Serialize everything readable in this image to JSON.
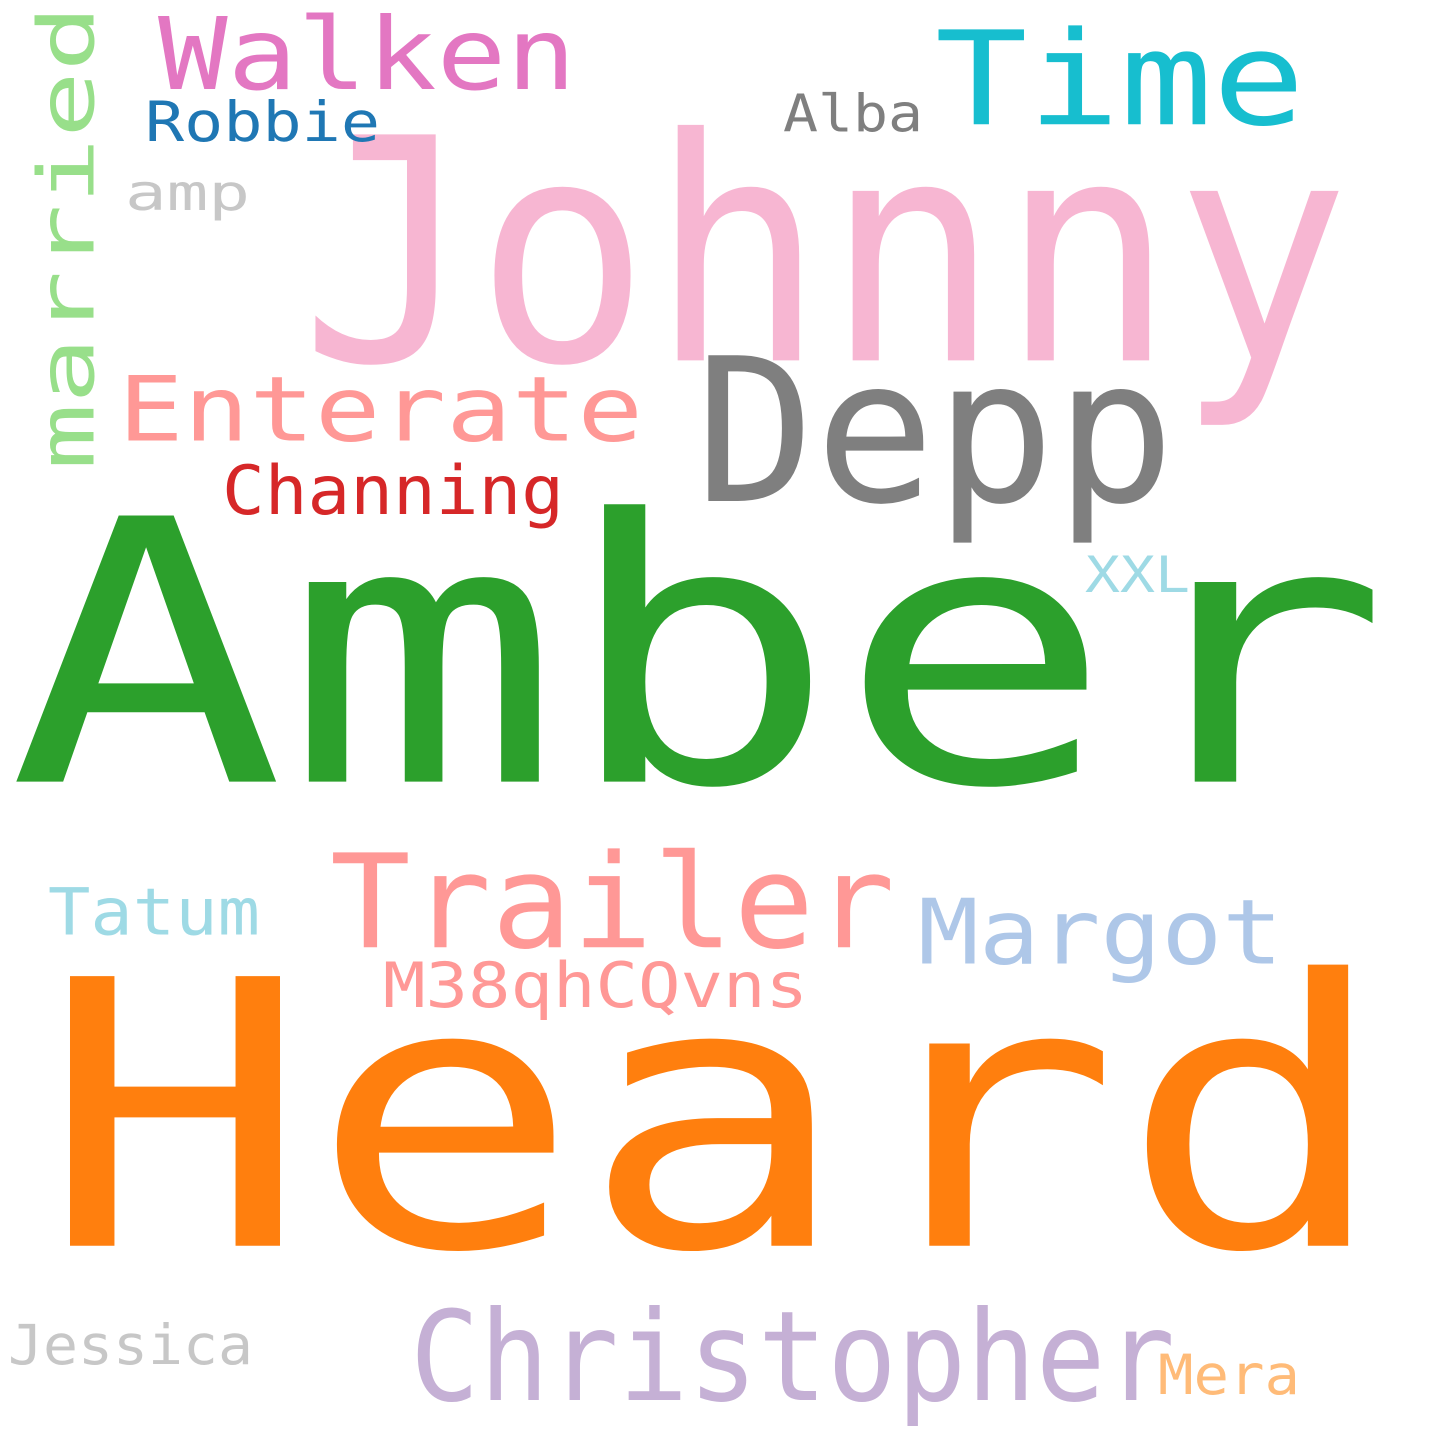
{
  "words": [
    {
      "id": "amber",
      "text": "Amber",
      "color": "#2ca02c"
    },
    {
      "id": "heard",
      "text": "Heard",
      "color": "#ff7f0e"
    },
    {
      "id": "johnny",
      "text": "Johnny",
      "color": "#f7b6d2"
    },
    {
      "id": "depp",
      "text": "Depp",
      "color": "#7f7f7f"
    },
    {
      "id": "time",
      "text": "Time",
      "color": "#17becf"
    },
    {
      "id": "walken",
      "text": "Walken",
      "color": "#e377c2"
    },
    {
      "id": "married",
      "text": "married",
      "color": "#98df8a"
    },
    {
      "id": "robbie",
      "text": "Robbie",
      "color": "#1f77b4"
    },
    {
      "id": "amp",
      "text": "amp",
      "color": "#c7c7c7"
    },
    {
      "id": "alba",
      "text": "Alba",
      "color": "#7f7f7f"
    },
    {
      "id": "enterate",
      "text": "Enterate",
      "color": "#ff9896"
    },
    {
      "id": "channing",
      "text": "Channing",
      "color": "#d62728"
    },
    {
      "id": "xxl",
      "text": "XXL",
      "color": "#9edae5"
    },
    {
      "id": "trailer",
      "text": "Trailer",
      "color": "#ff9896"
    },
    {
      "id": "margot",
      "text": "Margot",
      "color": "#aec7e8"
    },
    {
      "id": "tatum",
      "text": "Tatum",
      "color": "#9edae5"
    },
    {
      "id": "m38qhcqvns",
      "text": "M38qhCQvns",
      "color": "#ff9896"
    },
    {
      "id": "christopher",
      "text": "Christopher",
      "color": "#c5b0d5"
    },
    {
      "id": "jessica",
      "text": "Jessica",
      "color": "#c7c7c7"
    },
    {
      "id": "mera",
      "text": "Mera",
      "color": "#ffbb78"
    }
  ]
}
